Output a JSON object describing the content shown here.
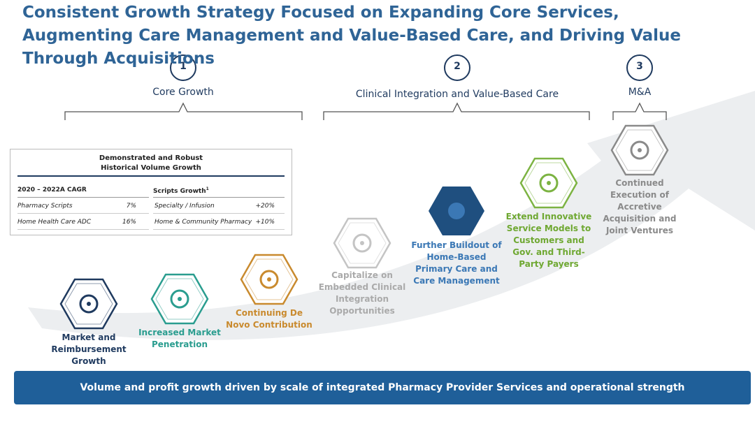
{
  "title": "Consistent Growth Strategy Focused on Expanding Core Services, Augmenting Care Management and Value-Based Care, and Driving Value Through Acquisitions",
  "pillars": [
    {
      "number": "1",
      "label": "Core Growth"
    },
    {
      "number": "2",
      "label": "Clinical Integration and Value-Based Care"
    },
    {
      "number": "3",
      "label": "M&A"
    }
  ],
  "table": {
    "title": "Demonstrated and Robust Historical Volume Growth",
    "headers": [
      "2020 – 2022A CAGR",
      "Scripts Growth"
    ],
    "header_note": "1",
    "rows": [
      [
        "Pharmacy Scripts",
        "7%",
        "Specialty / Infusion",
        "+20%"
      ],
      [
        "Home Health Care ADC",
        "16%",
        "Home & Community Pharmacy",
        "+10%"
      ]
    ]
  },
  "initiatives": [
    {
      "label": "Market and Reimbursement Growth"
    },
    {
      "label": "Increased Market Penetration"
    },
    {
      "label": "Continuing De Novo Contribution"
    },
    {
      "label": "Capitalize on Embedded Clinical Integration Opportunities"
    },
    {
      "label": "Further Buildout of Home-Based Primary Care and Care Management"
    },
    {
      "label": "Extend Innovative Service Models to Customers and Gov. and Third-Party Payers"
    },
    {
      "label": "Continued Execution of Accretive Acquisition and Joint Ventures"
    }
  ],
  "banner": "Volume and profit growth driven by scale of integrated Pharmacy Provider Services and operational strength"
}
